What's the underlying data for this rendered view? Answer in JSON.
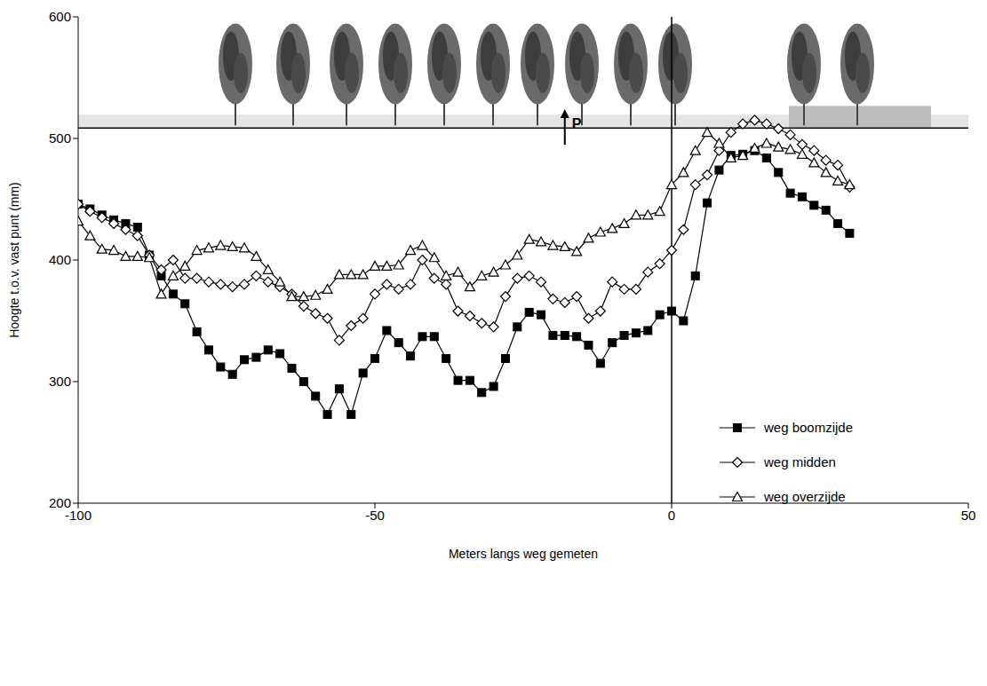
{
  "chart_data": {
    "type": "line",
    "x_label": "Meters langs weg gemeten",
    "y_label": "Hoogte t.o.v. vast punt (mm)",
    "xlim": [
      -100,
      50
    ],
    "xticks": [
      -100,
      -50,
      0,
      50
    ],
    "ylim": [
      200,
      600
    ],
    "yticks": [
      200,
      300,
      400,
      500,
      600
    ],
    "grid": false,
    "legend": "right",
    "reference_line_x": 0,
    "annotations": [
      {
        "text": "P",
        "x": -18
      }
    ],
    "x": [
      -100,
      -98,
      -96,
      -94,
      -92,
      -90,
      -88,
      -86,
      -84,
      -82,
      -80,
      -78,
      -76,
      -74,
      -72,
      -70,
      -68,
      -66,
      -64,
      -62,
      -60,
      -58,
      -56,
      -54,
      -52,
      -50,
      -48,
      -46,
      -44,
      -42,
      -40,
      -38,
      -36,
      -34,
      -32,
      -30,
      -28,
      -26,
      -24,
      -22,
      -20,
      -18,
      -16,
      -14,
      -12,
      -10,
      -8,
      -6,
      -4,
      -2,
      0,
      2,
      4,
      6,
      8,
      10,
      12,
      14,
      16,
      18,
      20,
      22,
      24,
      26,
      28,
      30
    ],
    "series": [
      {
        "name": "weg boomzijde",
        "color": "#000000",
        "marker": "square",
        "values": [
          446,
          442,
          437,
          433,
          430,
          427,
          404,
          387,
          372,
          364,
          341,
          326,
          312,
          306,
          318,
          320,
          326,
          323,
          311,
          300,
          288,
          273,
          294,
          273,
          307,
          319,
          342,
          332,
          321,
          337,
          337,
          319,
          301,
          301,
          291,
          296,
          319,
          345,
          357,
          355,
          338,
          338,
          337,
          330,
          315,
          332,
          338,
          340,
          342,
          355,
          358,
          350,
          387,
          447,
          474,
          486,
          487,
          490,
          484,
          472,
          455,
          452,
          445,
          441,
          430,
          422
        ]
      },
      {
        "name": "weg midden",
        "color": "#000000",
        "marker": "diamond",
        "values": [
          446,
          440,
          435,
          430,
          425,
          420,
          404,
          392,
          400,
          385,
          385,
          382,
          380,
          378,
          380,
          387,
          382,
          378,
          372,
          362,
          356,
          352,
          334,
          346,
          352,
          372,
          380,
          376,
          380,
          400,
          385,
          380,
          358,
          354,
          348,
          345,
          370,
          385,
          387,
          382,
          368,
          365,
          370,
          352,
          358,
          382,
          376,
          376,
          390,
          397,
          408,
          425,
          462,
          470,
          490,
          505,
          512,
          515,
          512,
          508,
          503,
          495,
          490,
          482,
          478,
          460
        ]
      },
      {
        "name": "weg overzijde",
        "color": "#000000",
        "marker": "triangle",
        "values": [
          432,
          420,
          409,
          408,
          403,
          403,
          402,
          372,
          387,
          395,
          408,
          410,
          412,
          411,
          410,
          403,
          392,
          382,
          370,
          370,
          371,
          376,
          388,
          388,
          388,
          395,
          395,
          396,
          408,
          412,
          402,
          387,
          390,
          378,
          387,
          390,
          396,
          404,
          417,
          415,
          412,
          411,
          407,
          418,
          423,
          426,
          430,
          437,
          437,
          440,
          462,
          472,
          490,
          505,
          496,
          484,
          486,
          492,
          496,
          493,
          491,
          487,
          480,
          472,
          465,
          462
        ]
      }
    ]
  }
}
